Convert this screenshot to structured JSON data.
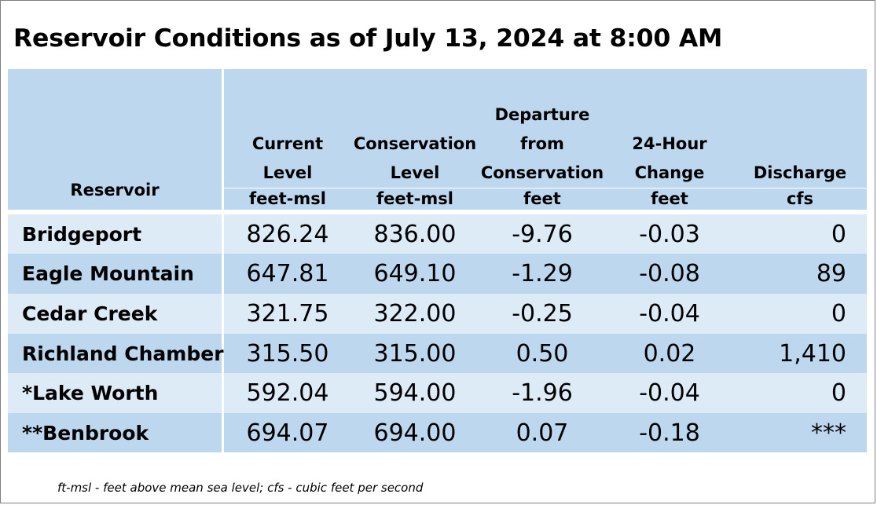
{
  "title": "Reservoir Conditions as of July 13, 2024 at 8:00 AM",
  "table": {
    "headers": [
      {
        "label": "Reservoir",
        "unit": ""
      },
      {
        "label_lines": [
          "Current",
          "Level"
        ],
        "unit": "feet-msl"
      },
      {
        "label_lines": [
          "Conservation",
          "Level"
        ],
        "unit": "feet-msl"
      },
      {
        "label_lines": [
          "Departure",
          "from",
          "Conservation"
        ],
        "unit": "feet"
      },
      {
        "label_lines": [
          "24-Hour",
          "Change"
        ],
        "unit": "feet"
      },
      {
        "label_lines": [
          "Discharge"
        ],
        "unit": "cfs"
      }
    ],
    "rows": [
      {
        "name": "Bridgeport",
        "current": "826.24",
        "conservation": "836.00",
        "departure": "-9.76",
        "change": "-0.03",
        "discharge": "0"
      },
      {
        "name": "Eagle Mountain",
        "current": "647.81",
        "conservation": "649.10",
        "departure": "-1.29",
        "change": "-0.08",
        "discharge": "89"
      },
      {
        "name": "Cedar Creek",
        "current": "321.75",
        "conservation": "322.00",
        "departure": "-0.25",
        "change": "-0.04",
        "discharge": "0"
      },
      {
        "name": "Richland Chambers",
        "current": "315.50",
        "conservation": "315.00",
        "departure": "0.50",
        "change": "0.02",
        "discharge": "1,410"
      },
      {
        "name": "*Lake Worth",
        "current": "592.04",
        "conservation": "594.00",
        "departure": "-1.96",
        "change": "-0.04",
        "discharge": "0"
      },
      {
        "name": "**Benbrook",
        "current": "694.07",
        "conservation": "694.00",
        "departure": "0.07",
        "change": "-0.18",
        "discharge": "***"
      }
    ]
  },
  "footnote": "ft-msl - feet above mean sea level; cfs - cubic feet per second",
  "colors": {
    "header_bg": "#bdd7ee",
    "row_light": "#ddebf7",
    "row_dark": "#bdd7ee",
    "border": "#7f7f7f"
  }
}
